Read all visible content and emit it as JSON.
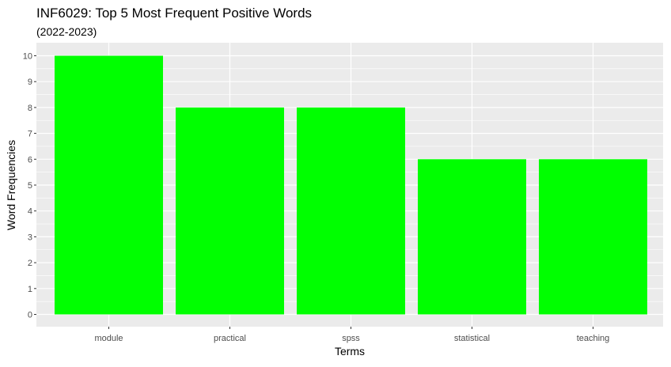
{
  "chart_data": {
    "type": "bar",
    "title": "INF6029: Top 5 Most Frequent Positive Words",
    "subtitle": "(2022-2023)",
    "xlabel": "Terms",
    "ylabel": "Word Frequencies",
    "categories": [
      "module",
      "practical",
      "spss",
      "statistical",
      "teaching"
    ],
    "values": [
      10,
      8,
      8,
      6,
      6
    ],
    "ylim": [
      0,
      10
    ],
    "yticks": [
      0,
      1,
      2,
      3,
      4,
      5,
      6,
      7,
      8,
      9,
      10
    ],
    "grid": true,
    "legend": "none",
    "colors": {
      "bar": "#00ff00",
      "panel": "#ebebeb",
      "grid_major": "#ffffff",
      "text": "#000000",
      "tick_text": "#4d4d4d",
      "tick_mark": "#333333"
    }
  }
}
